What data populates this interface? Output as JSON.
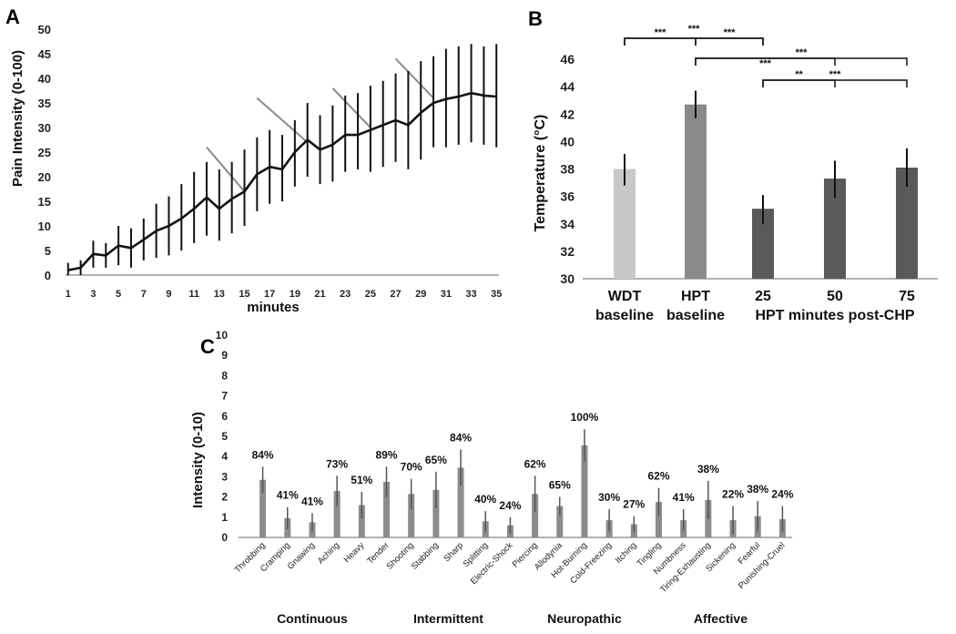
{
  "chart_data": [
    {
      "panel": "A",
      "type": "line",
      "ylabel": "Pain Intensity (0-100)",
      "xlabel": "minutes",
      "ylim": [
        0,
        50
      ],
      "y_ticks": [
        0,
        5,
        10,
        15,
        20,
        25,
        30,
        35,
        40,
        45,
        50
      ],
      "x_range": [
        1,
        35
      ],
      "x_tick_labels": [
        "1",
        "3",
        "5",
        "7",
        "9",
        "11",
        "13",
        "15",
        "17",
        "19",
        "21",
        "23",
        "25",
        "27",
        "29",
        "31",
        "33",
        "35"
      ],
      "series": [
        {
          "name": "Pain intensity",
          "x": [
            1,
            2,
            3,
            4,
            5,
            6,
            7,
            8,
            9,
            10,
            11,
            12,
            13,
            14,
            15,
            16,
            17,
            18,
            19,
            20,
            21,
            22,
            23,
            24,
            25,
            26,
            27,
            28,
            29,
            30,
            31,
            32,
            33,
            34,
            35
          ],
          "values": [
            1.0,
            1.5,
            4.3,
            4.0,
            6.0,
            5.5,
            7.2,
            9.0,
            10.0,
            11.5,
            13.5,
            15.8,
            13.5,
            15.5,
            17.0,
            20.5,
            22.0,
            21.5,
            25.0,
            27.5,
            25.5,
            26.5,
            28.5,
            28.5,
            29.5,
            30.5,
            31.5,
            30.5,
            33.0,
            35.0,
            35.8,
            36.3,
            37.0,
            36.5,
            36.3
          ],
          "err_upper": [
            2.5,
            3.0,
            7.0,
            6.5,
            10.0,
            9.5,
            11.5,
            14.5,
            16.0,
            18.5,
            21.0,
            23.0,
            21.5,
            23.0,
            25.5,
            28.0,
            29.5,
            28.5,
            31.5,
            35.0,
            32.5,
            34.5,
            36.5,
            37.0,
            38.5,
            39.5,
            41.0,
            41.5,
            43.5,
            44.5,
            46.0,
            46.5,
            47.0,
            46.5,
            47.0
          ],
          "err_lower": [
            0,
            0,
            1.5,
            1.5,
            2.0,
            1.5,
            3.0,
            3.5,
            4.0,
            5.0,
            6.5,
            8.0,
            7.0,
            8.5,
            10.0,
            13.0,
            14.5,
            15.0,
            18.0,
            20.0,
            18.5,
            19.0,
            21.0,
            21.5,
            21.0,
            22.0,
            23.0,
            21.5,
            23.5,
            26.0,
            26.0,
            26.5,
            27.0,
            26.5,
            26.0
          ]
        }
      ],
      "annotation_lines": [
        {
          "x1": 12,
          "y1": 26,
          "x2": 15,
          "y2": 17
        },
        {
          "x1": 16,
          "y1": 36,
          "x2": 20,
          "y2": 27
        },
        {
          "x1": 22,
          "y1": 38,
          "x2": 25,
          "y2": 30
        },
        {
          "x1": 27,
          "y1": 44,
          "x2": 30,
          "y2": 36
        }
      ],
      "grid": false
    },
    {
      "panel": "B",
      "type": "bar",
      "ylabel": "Temperature (°C)",
      "ylim": [
        30,
        46
      ],
      "y_ticks": [
        30,
        32,
        34,
        36,
        38,
        40,
        42,
        44,
        46
      ],
      "categories": [
        {
          "line1": "WDT",
          "line2": "baseline"
        },
        {
          "line1": "HPT",
          "line2": "baseline"
        },
        {
          "line1": "25",
          "line2": ""
        },
        {
          "line1": "50",
          "line2": "HPT minutes post-CHP"
        },
        {
          "line1": "75",
          "line2": ""
        }
      ],
      "values": [
        38.0,
        42.7,
        35.1,
        37.3,
        38.1
      ],
      "err_upper": [
        39.1,
        43.7,
        36.1,
        38.6,
        39.5
      ],
      "err_lower": [
        36.8,
        41.7,
        34.0,
        35.9,
        36.7
      ],
      "bar_colors": [
        "#c8c8c8",
        "#8a8a8a",
        "#595959",
        "#595959",
        "#595959"
      ],
      "significance": [
        {
          "from": 0,
          "to": 1,
          "label": "***"
        },
        {
          "from": 1,
          "to": 2,
          "label": "***"
        },
        {
          "from": 0,
          "to": 2,
          "label": "***"
        },
        {
          "from": 1,
          "to": 4,
          "label": "***"
        },
        {
          "from": 1,
          "to": 3,
          "label": "***"
        },
        {
          "from": 2,
          "to": 4,
          "label": "***"
        },
        {
          "from": 2,
          "to": 3,
          "label": "**"
        }
      ],
      "grid": false
    },
    {
      "panel": "C",
      "type": "bar",
      "ylabel": "Intensity (0-10)",
      "ylim": [
        0,
        10
      ],
      "y_ticks": [
        0,
        1,
        2,
        3,
        4,
        5,
        6,
        7,
        8,
        9,
        10
      ],
      "categories": [
        "Throbbing",
        "Cramping",
        "Gnawing",
        "Aching",
        "Heavy",
        "Tender",
        "Shooting",
        "Stabbing",
        "Sharp",
        "Splitting",
        "Electric-Shock",
        "Piercing",
        "Allodynia",
        "Hot-Burning",
        "Cold-Freezing",
        "Itching",
        "Tingling",
        "Numbness",
        "Tiring-Exhausting",
        "Sickening",
        "Fearful",
        "Punishing-Cruel"
      ],
      "values": [
        2.85,
        0.95,
        0.75,
        2.3,
        1.6,
        2.75,
        2.15,
        2.35,
        3.45,
        0.8,
        0.6,
        2.15,
        1.55,
        4.55,
        0.85,
        0.65,
        1.75,
        0.85,
        1.85,
        0.85,
        1.05,
        0.9
      ],
      "err_upper": [
        3.5,
        1.5,
        1.2,
        3.05,
        2.25,
        3.5,
        2.9,
        3.25,
        4.35,
        1.3,
        1.0,
        3.05,
        2.0,
        5.35,
        1.4,
        1.05,
        2.45,
        1.4,
        2.8,
        1.55,
        1.8,
        1.55
      ],
      "err_lower": [
        2.2,
        0.4,
        0.3,
        1.55,
        0.95,
        2.0,
        1.4,
        1.45,
        2.55,
        0.3,
        0.2,
        1.25,
        1.1,
        3.75,
        0.3,
        0.25,
        1.05,
        0.3,
        0.9,
        0.15,
        0.3,
        0.25
      ],
      "percent_labels": [
        "84%",
        "41%",
        "41%",
        "73%",
        "51%",
        "89%",
        "70%",
        "65%",
        "84%",
        "40%",
        "24%",
        "62%",
        "65%",
        "100%",
        "30%",
        "27%",
        "62%",
        "41%",
        "38%",
        "22%",
        "38%",
        "24%"
      ],
      "groups": [
        {
          "name": "Continuous",
          "from": 0,
          "to": 4
        },
        {
          "name": "Intermittent",
          "from": 5,
          "to": 10
        },
        {
          "name": "Neuropathic",
          "from": 11,
          "to": 15
        },
        {
          "name": "Affective",
          "from": 16,
          "to": 21
        }
      ],
      "bar_color": "#8c8c8c",
      "grid": false
    }
  ],
  "panel_letters": {
    "a": "A",
    "b": "B",
    "c": "C"
  }
}
